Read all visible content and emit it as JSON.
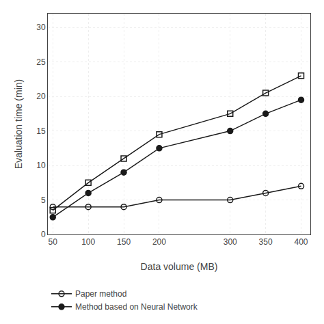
{
  "chart_data": {
    "type": "line",
    "x": [
      50,
      100,
      150,
      200,
      300,
      350,
      400
    ],
    "series": [
      {
        "values": [
          3.5,
          7.5,
          11,
          14.5,
          17.5,
          20.5,
          23
        ],
        "color": "#1a1a1a",
        "marker": "square-open"
      },
      {
        "name": "Method based on Neural Network",
        "values": [
          2.5,
          6,
          9,
          12.5,
          15,
          17.5,
          19.5
        ],
        "color": "#1a1a1a",
        "marker": "circle"
      },
      {
        "name": "Paper method",
        "values": [
          4,
          4,
          4,
          5,
          5,
          6,
          7
        ],
        "color": "#1a1a1a",
        "marker": "circle-open"
      }
    ],
    "xlabel": "Data volume (MB)",
    "ylabel": "Evaluation time (min)",
    "xlim": [
      43,
      413
    ],
    "xticks": [
      50,
      100,
      150,
      200,
      300,
      350,
      400
    ],
    "ylim": [
      0,
      32
    ],
    "yticks": [
      0,
      5,
      10,
      15,
      20,
      25,
      30
    ],
    "grid": true,
    "legend": "below"
  }
}
